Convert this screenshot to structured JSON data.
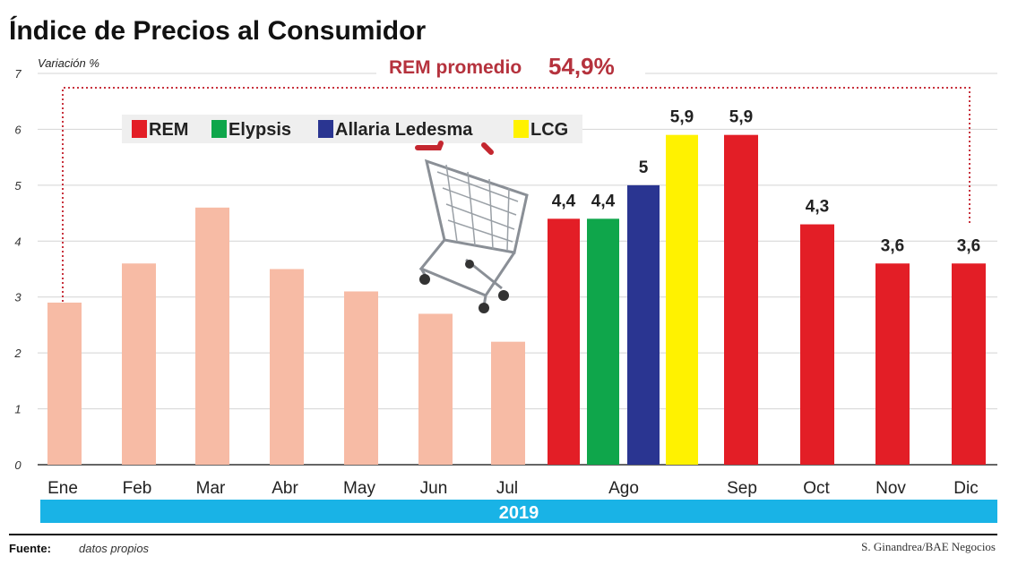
{
  "chart_data": {
    "type": "bar",
    "title": "Índice de Precios al Consumidor",
    "ylabel": "Variación %",
    "ylim": [
      0,
      7
    ],
    "yticks": [
      "0",
      "1",
      "2",
      "3",
      "4",
      "5",
      "6",
      "7"
    ],
    "grid": true,
    "legend_placement": "top-left",
    "year_label": "2019",
    "rem_average": {
      "label": "REM promedio",
      "value": "54,9%"
    },
    "source": {
      "label": "Fuente:",
      "text": "datos propios"
    },
    "credit": "S. Ginandrea/BAE Negocios",
    "colors": {
      "historical": "#f7bba5",
      "REM": "#e31e26",
      "Elypsis": "#0fa64b",
      "Allaria Ledesma": "#2a3591",
      "LCG": "#fff200",
      "accent": "#b5323d",
      "year_band": "#19b3e6"
    },
    "legend": [
      {
        "name": "REM",
        "color": "#e31e26"
      },
      {
        "name": "Elypsis",
        "color": "#0fa64b"
      },
      {
        "name": "Allaria Ledesma",
        "color": "#2a3591"
      },
      {
        "name": "LCG",
        "color": "#fff200"
      }
    ],
    "bars": [
      {
        "month": "Ene",
        "series": "Historical",
        "value": 2.9
      },
      {
        "month": "Feb",
        "series": "Historical",
        "value": 3.6
      },
      {
        "month": "Mar",
        "series": "Historical",
        "value": 4.6
      },
      {
        "month": "Abr",
        "series": "Historical",
        "value": 3.5
      },
      {
        "month": "May",
        "series": "Historical",
        "value": 3.1
      },
      {
        "month": "Jun",
        "series": "Historical",
        "value": 2.7
      },
      {
        "month": "Jul",
        "series": "Historical",
        "value": 2.2
      },
      {
        "month": "Ago",
        "series": "REM",
        "value": 4.4,
        "label": "4,4"
      },
      {
        "month": "Ago",
        "series": "Elypsis",
        "value": 4.4,
        "label": "4,4"
      },
      {
        "month": "Ago",
        "series": "Allaria Ledesma",
        "value": 5,
        "label": "5"
      },
      {
        "month": "Ago",
        "series": "LCG",
        "value": 5.9,
        "label": "5,9"
      },
      {
        "month": "Sep",
        "series": "REM",
        "value": 5.9,
        "label": "5,9"
      },
      {
        "month": "Oct",
        "series": "REM",
        "value": 4.3,
        "label": "4,3"
      },
      {
        "month": "Nov",
        "series": "REM",
        "value": 3.6,
        "label": "3,6"
      },
      {
        "month": "Dic",
        "series": "REM",
        "value": 3.6,
        "label": "3,6"
      }
    ],
    "months": [
      "Ene",
      "Feb",
      "Mar",
      "Abr",
      "May",
      "Jun",
      "Jul",
      "Ago",
      "Sep",
      "Oct",
      "Nov",
      "Dic"
    ]
  }
}
